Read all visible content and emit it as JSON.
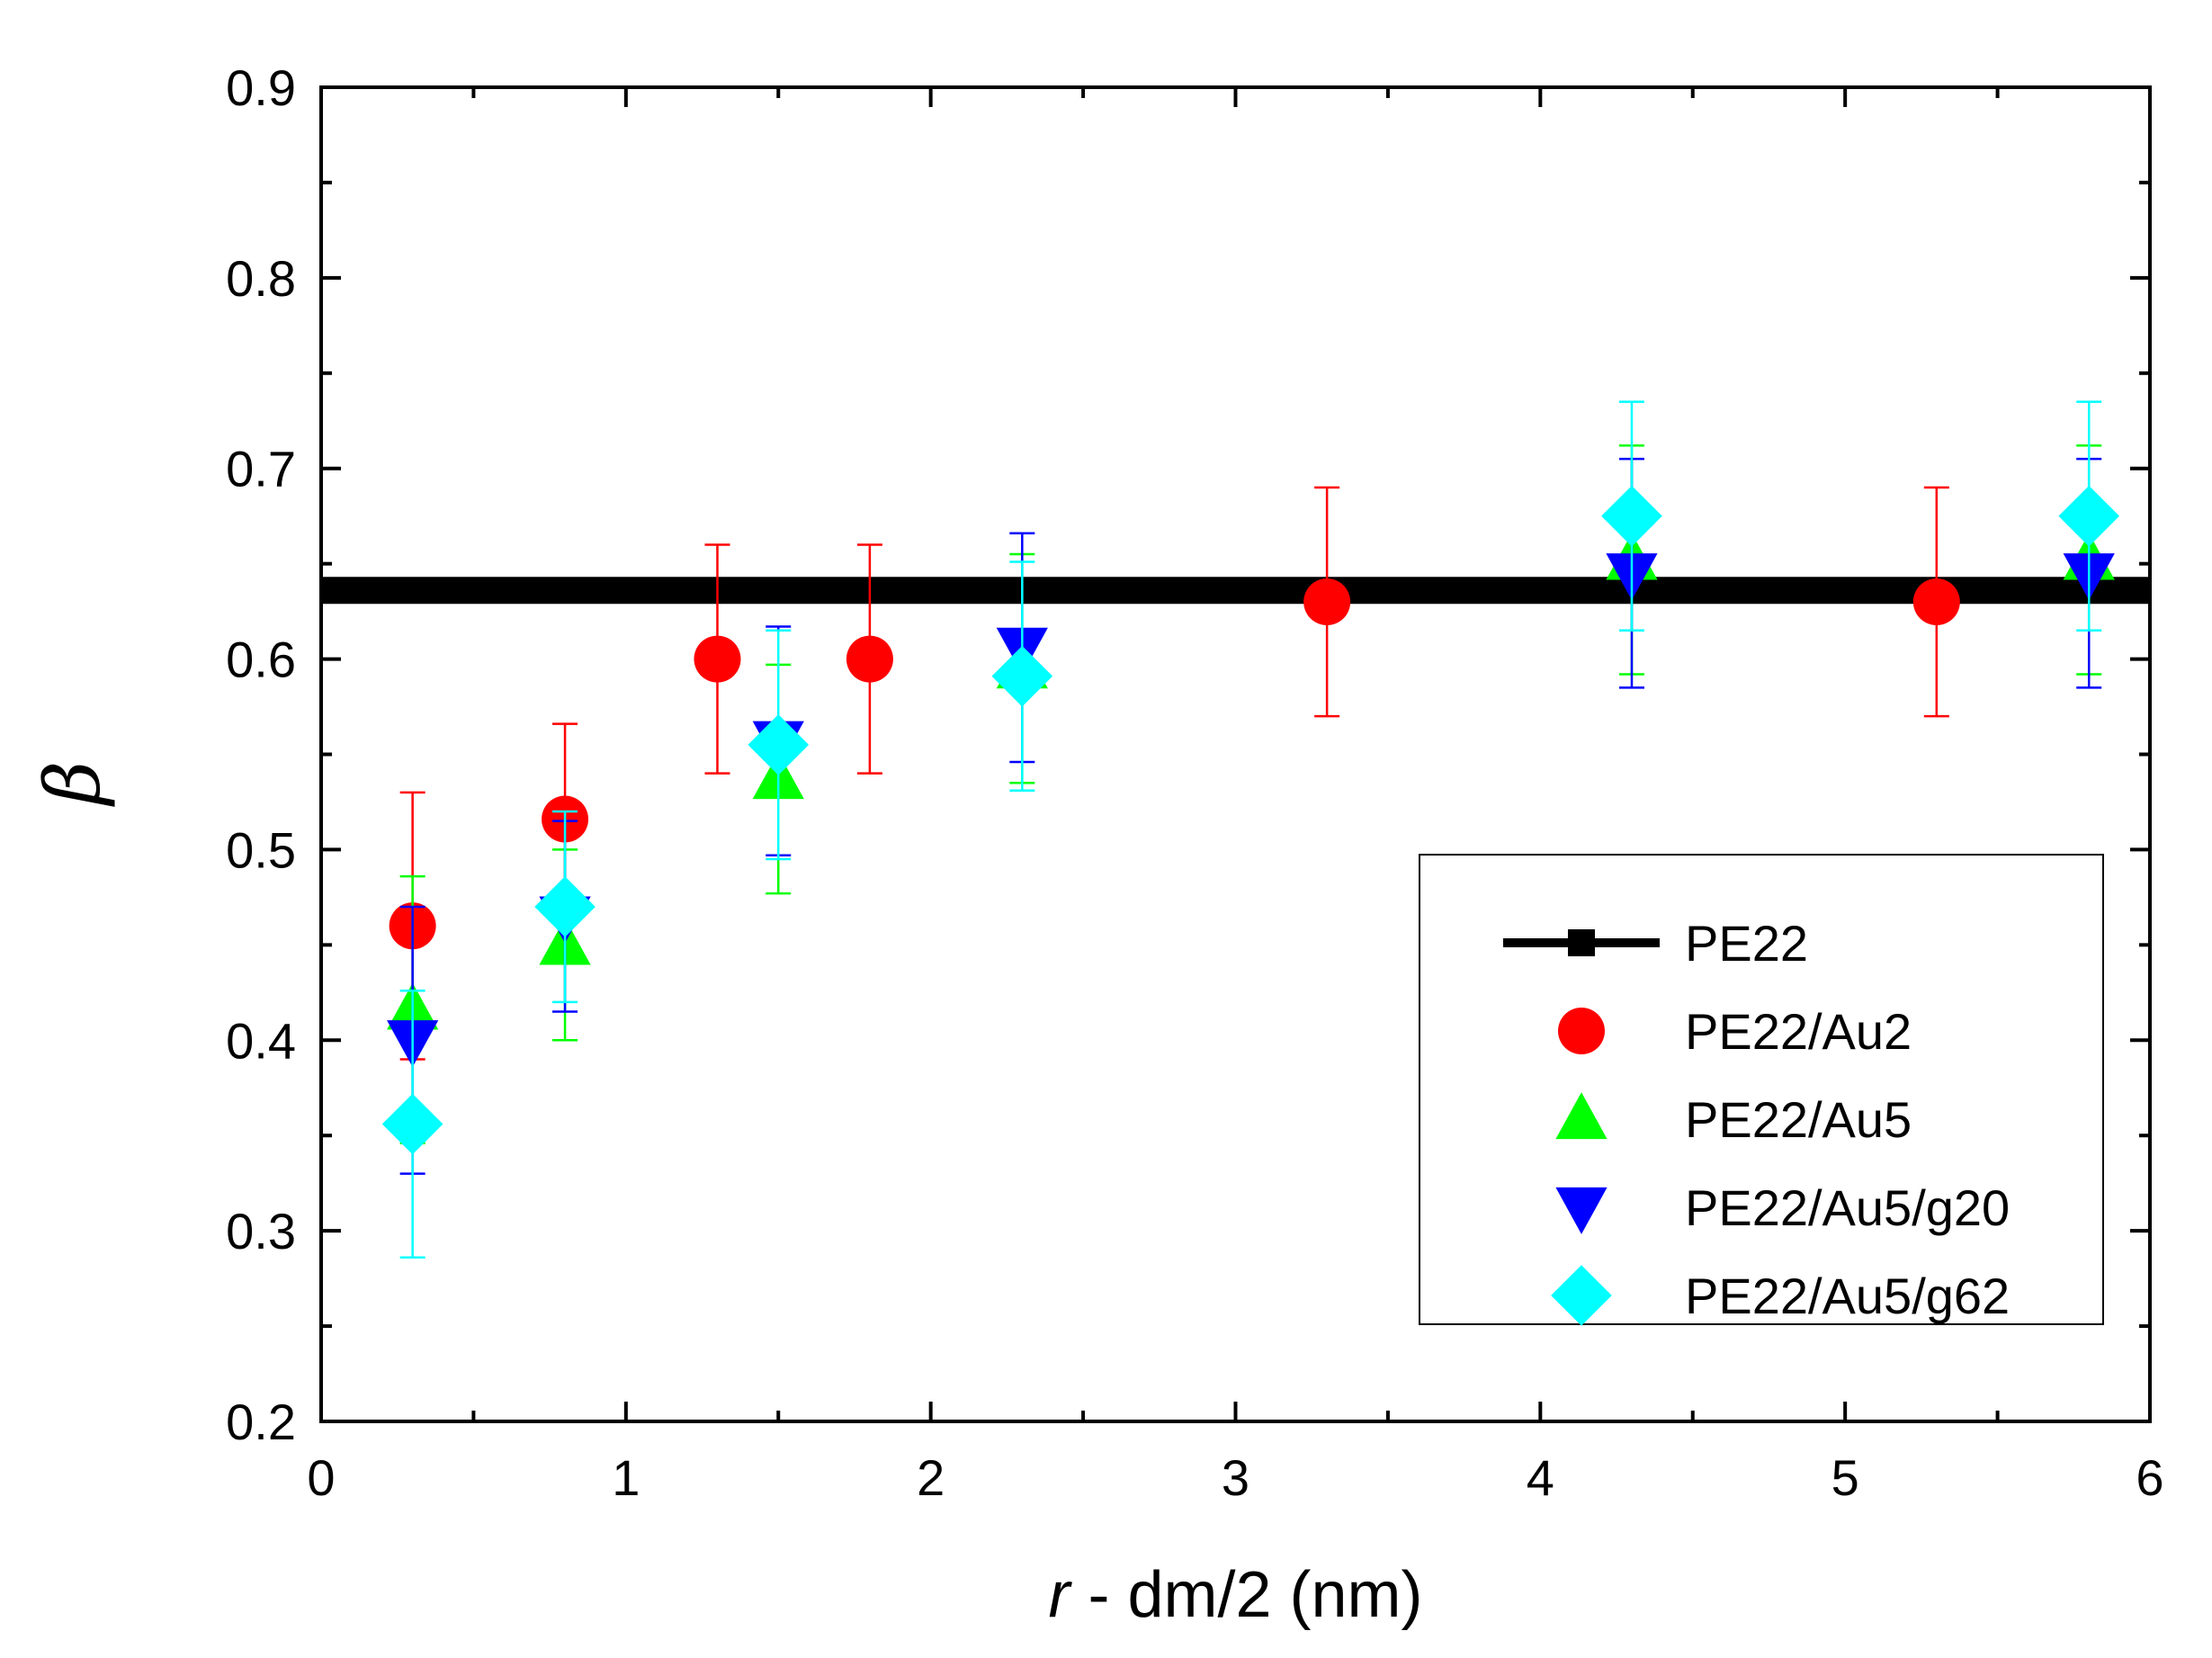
{
  "chart_data": {
    "type": "scatter",
    "title": "",
    "xlabel_italic": "r",
    "xlabel_rest": " - dm/2 (nm)",
    "ylabel": "β",
    "xlim": [
      0,
      6
    ],
    "ylim": [
      0.2,
      0.9
    ],
    "xticks": [
      0,
      1,
      2,
      3,
      4,
      5,
      6
    ],
    "xtick_labels": [
      "0",
      "1",
      "2",
      "3",
      "4",
      "5",
      "6"
    ],
    "yticks": [
      0.2,
      0.3,
      0.4,
      0.5,
      0.6,
      0.7,
      0.8,
      0.9
    ],
    "ytick_labels": [
      "0.2",
      "0.3",
      "0.4",
      "0.5",
      "0.6",
      "0.7",
      "0.8",
      "0.9"
    ],
    "grid": false,
    "legend_position": "lower-right",
    "series": [
      {
        "name": "PE22",
        "kind": "line",
        "color": "#000000",
        "marker": "square",
        "x": [
          0,
          6
        ],
        "y": [
          0.636,
          0.636
        ],
        "err": []
      },
      {
        "name": "PE22/Au2",
        "kind": "points",
        "color": "#ff0000",
        "marker": "circle",
        "x": [
          0.3,
          0.8,
          1.3,
          1.8,
          3.3,
          5.3
        ],
        "y": [
          0.46,
          0.516,
          0.6,
          0.6,
          0.63,
          0.63
        ],
        "err": [
          0.07,
          0.05,
          0.06,
          0.06,
          0.06,
          0.06
        ]
      },
      {
        "name": "PE22/Au5",
        "kind": "points",
        "color": "#00ff00",
        "marker": "triangle-up",
        "x": [
          0.3,
          0.8,
          1.5,
          2.3,
          4.3,
          5.8
        ],
        "y": [
          0.416,
          0.45,
          0.537,
          0.595,
          0.652,
          0.652
        ],
        "err": [
          0.07,
          0.05,
          0.06,
          0.06,
          0.06,
          0.06
        ]
      },
      {
        "name": "PE22/Au5/g20",
        "kind": "points",
        "color": "#0000ff",
        "marker": "triangle-down",
        "x": [
          0.3,
          0.8,
          1.5,
          2.3,
          4.3,
          5.8
        ],
        "y": [
          0.4,
          0.465,
          0.557,
          0.606,
          0.645,
          0.645
        ],
        "err": [
          0.07,
          0.05,
          0.06,
          0.06,
          0.06,
          0.06
        ]
      },
      {
        "name": "PE22/Au5/g62",
        "kind": "points",
        "color": "#00ffff",
        "marker": "diamond",
        "x": [
          0.3,
          0.8,
          1.5,
          2.3,
          4.3,
          5.8
        ],
        "y": [
          0.356,
          0.47,
          0.555,
          0.591,
          0.675,
          0.675
        ],
        "err": [
          0.07,
          0.05,
          0.06,
          0.06,
          0.06,
          0.06
        ]
      }
    ]
  }
}
